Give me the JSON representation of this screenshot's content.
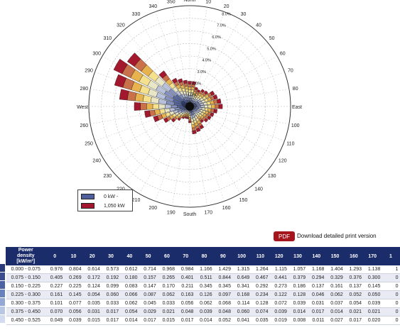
{
  "chart_data": {
    "type": "wind-rose",
    "directions": [
      0,
      10,
      20,
      30,
      40,
      50,
      60,
      70,
      80,
      90,
      100,
      110,
      120,
      130,
      140,
      150,
      160,
      170,
      180,
      190,
      200,
      210,
      220,
      230,
      240,
      250,
      260,
      270,
      280,
      290,
      300,
      310,
      320,
      330,
      340,
      350
    ],
    "direction_tick_labels": [
      "North",
      "10",
      "20",
      "30",
      "40",
      "50",
      "60",
      "70",
      "80",
      "East",
      "100",
      "110",
      "120",
      "130",
      "140",
      "150",
      "160",
      "170",
      "South",
      "190",
      "200",
      "210",
      "220",
      "230",
      "240",
      "250",
      "260",
      "West",
      "280",
      "290",
      "300",
      "310",
      "320",
      "330",
      "340",
      "350"
    ],
    "radial_tick_labels": [
      "1.0%",
      "2.0%",
      "3.0%",
      "4.0%",
      "5.0%",
      "6.0%",
      "7.0%",
      "8.0%"
    ],
    "radial_range": [
      0,
      8.0
    ],
    "frequency_percent": [
      2.0,
      2.0,
      1.6,
      1.5,
      1.7,
      1.8,
      2.2,
      2.3,
      2.5,
      2.6,
      2.2,
      2.0,
      1.9,
      1.8,
      1.6,
      2.0,
      2.1,
      2.2,
      1.3,
      1.0,
      1.0,
      1.1,
      1.4,
      1.8,
      2.3,
      3.0,
      3.6,
      4.4,
      5.6,
      6.2,
      6.7,
      6.1,
      3.5,
      2.5,
      2.3,
      2.1
    ],
    "color_scale": [
      "#2e3b7a",
      "#5667a3",
      "#8491c1",
      "#b8c1dc",
      "#e9e6c8",
      "#f5e08e",
      "#e7b34e",
      "#c9714a",
      "#a3182d"
    ],
    "legend": [
      {
        "label": "0 kW -",
        "color": "#4f5f9c"
      },
      {
        "label": "1,050 kW",
        "color": "#a5152e"
      }
    ],
    "grid": true
  },
  "download": {
    "pdf_label": "PDF",
    "link_text": "Download detailed print version"
  },
  "table": {
    "header_label_lines": [
      "Power",
      "density",
      "[kW/m²]"
    ],
    "columns": [
      "0",
      "10",
      "20",
      "30",
      "40",
      "50",
      "60",
      "70",
      "80",
      "90",
      "100",
      "110",
      "120",
      "130",
      "140",
      "150",
      "160",
      "170",
      "1"
    ],
    "rows": [
      {
        "label": "0.000 - 0.075",
        "color": "#2a3a7a",
        "values": [
          "0.976",
          "0.804",
          "0.614",
          "0.573",
          "0.612",
          "0.714",
          "0.968",
          "0.984",
          "1.166",
          "1.429",
          "1.315",
          "1.264",
          "1.115",
          "1.057",
          "1.168",
          "1.404",
          "1.293",
          "1.138",
          "1"
        ]
      },
      {
        "label": "0.075 - 0.150",
        "color": "#3b4c8f",
        "values": [
          "0.405",
          "0.269",
          "0.172",
          "0.192",
          "0.180",
          "0.157",
          "0.265",
          "0.401",
          "0.511",
          "0.844",
          "0.649",
          "0.467",
          "0.441",
          "0.379",
          "0.294",
          "0.329",
          "0.376",
          "0.300",
          "0"
        ]
      },
      {
        "label": "0.150 - 0.225",
        "color": "#4d62a3",
        "values": [
          "0.227",
          "0.225",
          "0.124",
          "0.099",
          "0.083",
          "0.147",
          "0.170",
          "0.211",
          "0.345",
          "0.345",
          "0.341",
          "0.292",
          "0.273",
          "0.186",
          "0.137",
          "0.161",
          "0.137",
          "0.145",
          "0"
        ]
      },
      {
        "label": "0.225 - 0.300",
        "color": "#6a82bc",
        "values": [
          "0.161",
          "0.145",
          "0.054",
          "0.060",
          "0.066",
          "0.087",
          "0.062",
          "0.163",
          "0.126",
          "0.097",
          "0.168",
          "0.234",
          "0.122",
          "0.128",
          "0.046",
          "0.062",
          "0.052",
          "0.050",
          "0"
        ]
      },
      {
        "label": "0.300 - 0.375",
        "color": "#93a8d2",
        "values": [
          "0.101",
          "0.077",
          "0.035",
          "0.033",
          "0.062",
          "0.045",
          "0.033",
          "0.056",
          "0.062",
          "0.068",
          "0.114",
          "0.128",
          "0.072",
          "0.039",
          "0.031",
          "0.037",
          "0.054",
          "0.039",
          "0"
        ]
      },
      {
        "label": "0.375 - 0.450",
        "color": "#b8c8e2",
        "values": [
          "0.070",
          "0.056",
          "0.031",
          "0.017",
          "0.054",
          "0.029",
          "0.021",
          "0.048",
          "0.039",
          "0.048",
          "0.060",
          "0.074",
          "0.039",
          "0.014",
          "0.017",
          "0.014",
          "0.021",
          "0.021",
          "0"
        ]
      },
      {
        "label": "0.450 - 0.525",
        "color": "#d3dcee",
        "values": [
          "0.049",
          "0.039",
          "0.015",
          "0.017",
          "0.014",
          "0.017",
          "0.015",
          "0.017",
          "0.014",
          "0.052",
          "0.041",
          "0.035",
          "0.019",
          "0.008",
          "0.011",
          "0.027",
          "0.017",
          "0.020",
          "0"
        ]
      }
    ]
  }
}
